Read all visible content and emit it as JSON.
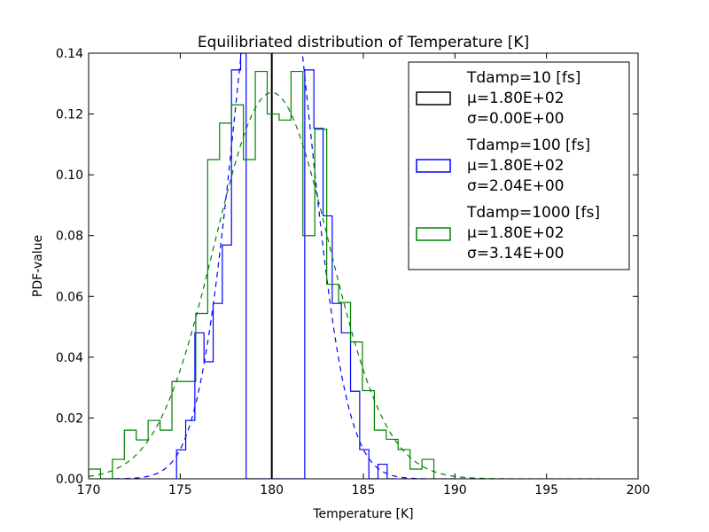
{
  "chart_data": {
    "type": "histogram",
    "title": "Equilibriated distribution of Temperature [K]",
    "xlabel": "Temperature [K]",
    "ylabel": "PDF-value",
    "xlim": [
      170,
      200
    ],
    "ylim": [
      0,
      0.14
    ],
    "xticks": [
      170,
      175,
      180,
      185,
      190,
      195,
      200
    ],
    "yticks": [
      0.0,
      0.02,
      0.04,
      0.06,
      0.08,
      0.1,
      0.12,
      0.14
    ],
    "xtick_labels": [
      "170",
      "175",
      "180",
      "185",
      "190",
      "195",
      "200"
    ],
    "ytick_labels": [
      "0.00",
      "0.02",
      "0.04",
      "0.06",
      "0.08",
      "0.10",
      "0.12",
      "0.14"
    ],
    "grid": false,
    "legend_position": "top-right",
    "series": [
      {
        "name": "Tdamp=10 [fs]",
        "mu": "μ=1.80E+02",
        "sigma": "σ=0.00E+00",
        "color": "#000000",
        "kind": "vline",
        "x": 180.0
      },
      {
        "name": "Tdamp=100 [fs]",
        "mu": "μ=1.80E+02",
        "sigma": "σ=2.04E+00",
        "color": "#0000ff",
        "kind": "hist",
        "edges": [
          174.8,
          175.3,
          175.8,
          176.3,
          176.8,
          177.3,
          177.8,
          178.3,
          178.6,
          181.8,
          182.3,
          182.8,
          183.3,
          183.8,
          184.3,
          184.8,
          185.3,
          185.8,
          186.3,
          186.8
        ],
        "values": [
          0.0095,
          0.0192,
          0.048,
          0.0385,
          0.0577,
          0.0769,
          0.1345,
          0.14,
          0,
          0.1345,
          0.1153,
          0.0865,
          0.0577,
          0.048,
          0.0288,
          0.0096,
          0,
          0.0048,
          0.0
        ],
        "fit": {
          "mu": 180.0,
          "sigma": 2.04
        }
      },
      {
        "name": "Tdamp=1000 [fs]",
        "mu": "μ=1.80E+02",
        "sigma": "σ=3.14E+00",
        "color": "#008000",
        "kind": "hist",
        "edges": [
          170.0,
          170.65,
          171.3,
          171.95,
          172.6,
          173.25,
          173.9,
          174.55,
          175.2,
          175.85,
          176.5,
          177.15,
          177.8,
          178.45,
          179.1,
          179.75,
          180.4,
          181.05,
          181.7,
          182.35,
          183.0,
          183.65,
          184.3,
          184.95,
          185.6,
          186.25,
          186.9,
          187.55,
          188.2,
          188.85
        ],
        "values": [
          0.0032,
          0.0,
          0.0064,
          0.016,
          0.0128,
          0.0192,
          0.016,
          0.032,
          0.032,
          0.0544,
          0.105,
          0.117,
          0.123,
          0.105,
          0.134,
          0.12,
          0.118,
          0.134,
          0.08,
          0.115,
          0.064,
          0.058,
          0.045,
          0.029,
          0.016,
          0.013,
          0.0096,
          0.0032,
          0.0064
        ],
        "fit": {
          "mu": 180.0,
          "sigma": 3.14
        }
      }
    ]
  }
}
